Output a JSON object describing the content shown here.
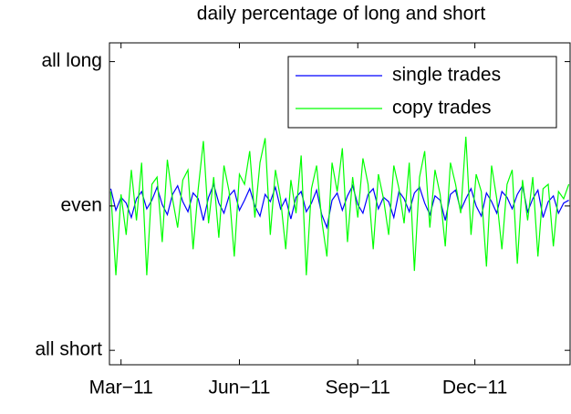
{
  "chart_data": {
    "type": "line",
    "title": "daily percentage of long and short",
    "x": [
      1,
      5,
      9,
      13,
      17,
      21,
      25,
      29,
      33,
      37,
      41,
      45,
      49,
      53,
      57,
      61,
      65,
      69,
      73,
      77,
      81,
      85,
      89,
      93,
      97,
      101,
      105,
      109,
      113,
      117,
      121,
      125,
      129,
      133,
      137,
      141,
      145,
      149,
      153,
      157,
      161,
      165,
      169,
      173,
      177,
      181,
      185,
      189,
      193,
      197,
      201,
      205,
      209,
      213,
      217,
      221,
      225,
      229,
      233,
      237,
      241,
      245,
      249,
      253,
      257,
      261,
      265,
      269,
      273,
      277,
      281,
      285,
      289,
      293,
      297,
      301,
      305,
      309,
      313,
      317,
      321,
      325,
      329,
      333,
      337,
      341,
      345,
      349,
      353,
      357
    ],
    "series": [
      {
        "name": "single trades",
        "color": "#0000ff",
        "values": [
          0.12,
          -0.03,
          0.06,
          0.02,
          -0.08,
          0.05,
          0.1,
          -0.02,
          0.04,
          0.13,
          0.01,
          -0.06,
          0.08,
          0.14,
          0.03,
          -0.04,
          0.09,
          0.05,
          -0.1,
          0.06,
          0.15,
          0.02,
          -0.05,
          0.07,
          0.11,
          -0.03,
          0.04,
          0.12,
          0.0,
          -0.07,
          0.08,
          0.03,
          0.13,
          -0.02,
          0.05,
          -0.09,
          0.06,
          0.1,
          -0.04,
          0.02,
          0.11,
          -0.06,
          -0.15,
          0.04,
          0.09,
          -0.03,
          0.07,
          0.14,
          0.01,
          -0.05,
          0.08,
          0.12,
          -0.02,
          0.06,
          0.03,
          -0.08,
          0.1,
          0.05,
          -0.04,
          0.09,
          0.13,
          0.02,
          -0.06,
          0.07,
          0.04,
          -0.1,
          0.08,
          0.11,
          -0.03,
          0.05,
          0.12,
          0.0,
          -0.07,
          0.09,
          0.03,
          -0.05,
          0.1,
          0.06,
          -0.02,
          0.08,
          0.14,
          -0.04,
          0.05,
          0.11,
          -0.08,
          0.03,
          0.07,
          -0.05,
          0.02,
          0.04
        ]
      },
      {
        "name": "copy trades",
        "color": "#00ff00",
        "values": [
          0.1,
          -0.48,
          0.08,
          -0.2,
          0.25,
          -0.1,
          0.3,
          -0.48,
          0.15,
          0.2,
          -0.25,
          0.32,
          0.05,
          -0.15,
          0.18,
          0.25,
          -0.3,
          0.12,
          0.45,
          -0.12,
          0.2,
          -0.22,
          0.28,
          0.1,
          -0.35,
          0.22,
          0.15,
          0.38,
          -0.08,
          0.3,
          0.47,
          -0.2,
          0.25,
          0.05,
          -0.3,
          0.18,
          -0.05,
          0.35,
          -0.48,
          0.12,
          0.28,
          -0.1,
          -0.35,
          0.3,
          0.1,
          0.4,
          -0.25,
          0.2,
          -0.08,
          0.33,
          0.15,
          -0.3,
          0.22,
          0.05,
          -0.2,
          0.28,
          0.12,
          -0.12,
          0.3,
          -0.45,
          0.2,
          0.38,
          -0.15,
          0.25,
          0.08,
          -0.28,
          0.3,
          0.15,
          -0.05,
          0.48,
          -0.2,
          0.22,
          0.1,
          -0.42,
          0.28,
          0.05,
          -0.3,
          0.15,
          0.25,
          -0.4,
          0.18,
          -0.1,
          0.2,
          -0.35,
          0.12,
          0.15,
          -0.28,
          0.1,
          0.05,
          0.15
        ]
      }
    ],
    "xlim": [
      0,
      358
    ],
    "xticks": [
      {
        "value": 9,
        "label": "Mar−11"
      },
      {
        "value": 101,
        "label": "Jun−11"
      },
      {
        "value": 193,
        "label": "Sep−11"
      },
      {
        "value": 284,
        "label": "Dec−11"
      }
    ],
    "ylim": [
      -1.1,
      1.13
    ],
    "yticks": [
      {
        "value": -1,
        "label": "all short"
      },
      {
        "value": 0,
        "label": "even"
      },
      {
        "value": 1,
        "label": "all long"
      }
    ],
    "legend": "upper right"
  }
}
